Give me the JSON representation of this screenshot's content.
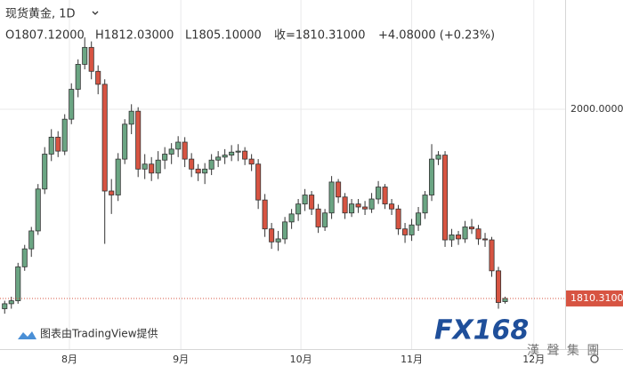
{
  "chart_data": {
    "type": "candlestick",
    "title": "现货黄金, 1D",
    "ohlc_header": {
      "open": "O1807.12000",
      "high": "H1812.03000",
      "low": "L1805.10000",
      "close": "收=1810.31000",
      "change": "+4.08000 (+0.23%)"
    },
    "credit": "图表由TradingView提供",
    "logo": "FX168",
    "logo_subtitle": "漢 聲 集 團",
    "up_color": "#6ba583",
    "down_color": "#d75442",
    "ylim": [
      1759.5,
      2109.5
    ],
    "yticks": [
      {
        "value": 2000,
        "label": "2000.00000"
      }
    ],
    "xlim": [
      -0.7,
      84
    ],
    "xticks": [
      {
        "value": 9.7,
        "label": "8月"
      },
      {
        "value": 26.4,
        "label": "9月"
      },
      {
        "value": 44.4,
        "label": "10月"
      },
      {
        "value": 61,
        "label": "11月"
      },
      {
        "value": 79.3,
        "label": "12月"
      }
    ],
    "last_value": 1810.31,
    "last_value_label": "1810.31000",
    "series": [
      {
        "values": [
          [
            1800,
            1808,
            1795,
            1805
          ],
          [
            1805,
            1812,
            1800,
            1808
          ],
          [
            1808,
            1846,
            1805,
            1842
          ],
          [
            1842,
            1864,
            1838,
            1860
          ],
          [
            1860,
            1882,
            1852,
            1878
          ],
          [
            1878,
            1925,
            1874,
            1920
          ],
          [
            1920,
            1962,
            1915,
            1955
          ],
          [
            1955,
            1980,
            1948,
            1972
          ],
          [
            1972,
            1978,
            1952,
            1958
          ],
          [
            1958,
            1995,
            1954,
            1990
          ],
          [
            1990,
            2026,
            1985,
            2020
          ],
          [
            2020,
            2050,
            2012,
            2045
          ],
          [
            2045,
            2072,
            2040,
            2062
          ],
          [
            2062,
            2068,
            2030,
            2038
          ],
          [
            2038,
            2044,
            2015,
            2025
          ],
          [
            2025,
            2030,
            1865,
            1918
          ],
          [
            1918,
            1930,
            1895,
            1914
          ],
          [
            1914,
            1956,
            1908,
            1950
          ],
          [
            1950,
            1990,
            1945,
            1985
          ],
          [
            1985,
            2005,
            1975,
            1998
          ],
          [
            1998,
            2002,
            1932,
            1940
          ],
          [
            1940,
            1955,
            1930,
            1945
          ],
          [
            1945,
            1952,
            1928,
            1936
          ],
          [
            1936,
            1958,
            1930,
            1949
          ],
          [
            1949,
            1962,
            1940,
            1955
          ],
          [
            1955,
            1966,
            1945,
            1960
          ],
          [
            1960,
            1973,
            1952,
            1967
          ],
          [
            1967,
            1972,
            1942,
            1950
          ],
          [
            1950,
            1956,
            1932,
            1940
          ],
          [
            1940,
            1945,
            1928,
            1936
          ],
          [
            1936,
            1946,
            1925,
            1940
          ],
          [
            1940,
            1955,
            1934,
            1949
          ],
          [
            1949,
            1958,
            1942,
            1952
          ],
          [
            1952,
            1960,
            1945,
            1954
          ],
          [
            1954,
            1964,
            1948,
            1957
          ],
          [
            1957,
            1965,
            1948,
            1958
          ],
          [
            1958,
            1962,
            1944,
            1950
          ],
          [
            1950,
            1955,
            1938,
            1945
          ],
          [
            1945,
            1950,
            1900,
            1909
          ],
          [
            1909,
            1915,
            1872,
            1880
          ],
          [
            1880,
            1886,
            1860,
            1867
          ],
          [
            1867,
            1878,
            1858,
            1870
          ],
          [
            1870,
            1892,
            1865,
            1887
          ],
          [
            1887,
            1900,
            1880,
            1895
          ],
          [
            1895,
            1910,
            1888,
            1905
          ],
          [
            1905,
            1920,
            1898,
            1914
          ],
          [
            1914,
            1918,
            1894,
            1900
          ],
          [
            1900,
            1905,
            1876,
            1882
          ],
          [
            1882,
            1900,
            1878,
            1896
          ],
          [
            1896,
            1933,
            1890,
            1927
          ],
          [
            1927,
            1930,
            1906,
            1912
          ],
          [
            1912,
            1916,
            1890,
            1896
          ],
          [
            1896,
            1910,
            1892,
            1905
          ],
          [
            1905,
            1910,
            1896,
            1902
          ],
          [
            1902,
            1908,
            1894,
            1900
          ],
          [
            1900,
            1916,
            1896,
            1910
          ],
          [
            1910,
            1928,
            1905,
            1922
          ],
          [
            1922,
            1925,
            1900,
            1905
          ],
          [
            1905,
            1910,
            1894,
            1900
          ],
          [
            1900,
            1904,
            1874,
            1880
          ],
          [
            1880,
            1886,
            1866,
            1874
          ],
          [
            1874,
            1890,
            1868,
            1884
          ],
          [
            1884,
            1902,
            1878,
            1896
          ],
          [
            1896,
            1918,
            1890,
            1914
          ],
          [
            1914,
            1965,
            1908,
            1950
          ],
          [
            1950,
            1958,
            1944,
            1954
          ],
          [
            1954,
            1958,
            1862,
            1869
          ],
          [
            1869,
            1880,
            1862,
            1874
          ],
          [
            1874,
            1878,
            1864,
            1870
          ],
          [
            1870,
            1888,
            1866,
            1882
          ],
          [
            1882,
            1890,
            1875,
            1880
          ],
          [
            1880,
            1884,
            1864,
            1870
          ],
          [
            1870,
            1876,
            1862,
            1869
          ],
          [
            1869,
            1872,
            1832,
            1838
          ],
          [
            1838,
            1842,
            1800,
            1806.23
          ],
          [
            1807.12,
            1812.03,
            1805.1,
            1810.31
          ]
        ]
      }
    ]
  }
}
